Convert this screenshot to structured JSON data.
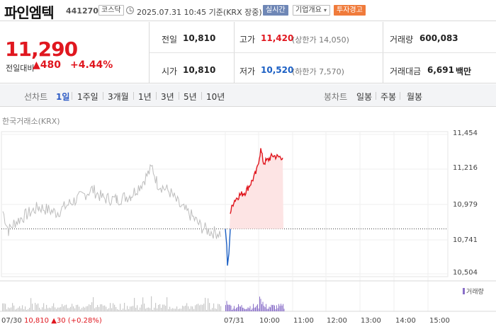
{
  "header": {
    "name": "파인엠텍",
    "code": "441270",
    "market": "코스닥",
    "timestamp": "2025.07.31 10:45 기준(KRX 장중)",
    "realtime": "실시간",
    "company_info": "기업개요",
    "warning": "투자경고"
  },
  "price": {
    "current": "11,290",
    "change_label": "전일대비",
    "change": "▲480",
    "change_pct": "+4.44%"
  },
  "stats": {
    "prev_close_label": "전일",
    "prev_close": "10,810",
    "high_label": "고가",
    "high": "11,420",
    "upper_limit": "(상한가 14,050)",
    "volume_label": "거래량",
    "volume": "600,083",
    "open_label": "시가",
    "open": "10,810",
    "low_label": "저가",
    "low": "10,520",
    "lower_limit": "(하한가 7,570)",
    "amount_label": "거래대금",
    "amount": "6,691",
    "amount_unit": "백만"
  },
  "tabs": {
    "line_label": "선차트",
    "line": [
      "1일",
      "1주일",
      "3개월",
      "1년",
      "3년",
      "5년",
      "10년"
    ],
    "active": "1일",
    "candle_label": "봉차트",
    "candle": [
      "일봉",
      "주봉",
      "월봉"
    ]
  },
  "chart_data": {
    "type": "line",
    "source": "한국거래소(KRX)",
    "y_ticks": [
      "11,454",
      "11,216",
      "10,979",
      "10,741",
      "10,504"
    ],
    "x_ticks": [
      "07/30",
      "07/31",
      "10:00",
      "11:00",
      "12:00",
      "13:00",
      "14:00",
      "15:00"
    ],
    "baseline": 10810,
    "volume_label": "거래량",
    "colors": {
      "prev_day": "#bdbdbd",
      "up": "#e0171f",
      "down": "#1b5fc4",
      "fill": "#fde4e4",
      "volume_today": "#8a6fc8"
    }
  },
  "footer": {
    "date": "07/30",
    "close": "10,810",
    "change": "▲30 (+0.28%)"
  }
}
